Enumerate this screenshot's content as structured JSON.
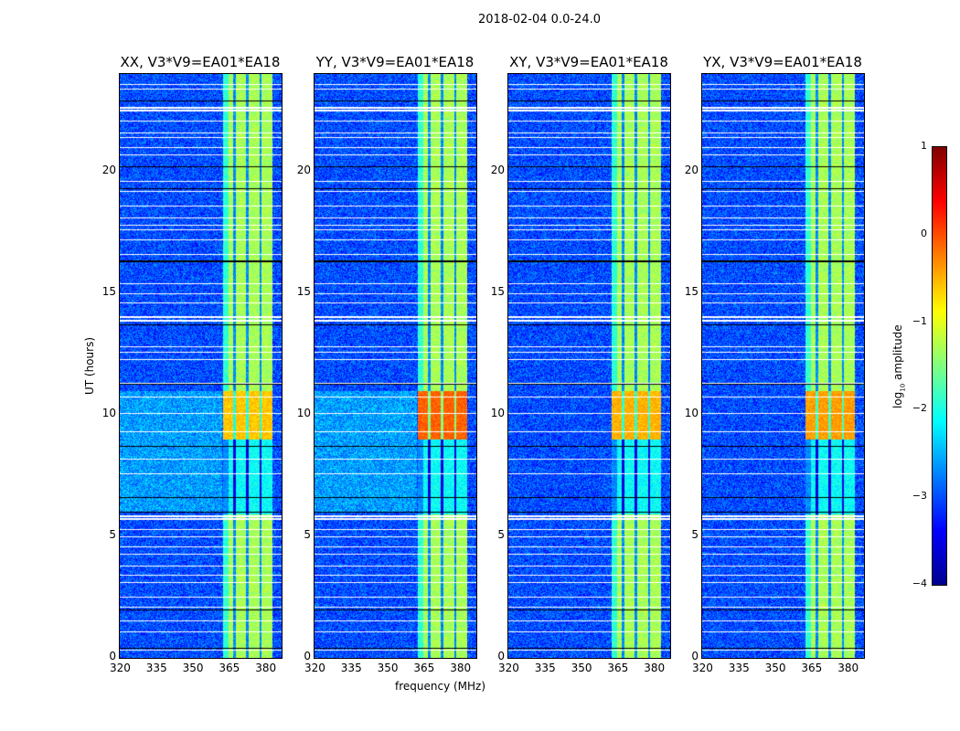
{
  "chart_data": {
    "type": "heatmap",
    "suptitle": "2018-02-04 0.0-24.0",
    "xlabel": "frequency (MHz)",
    "ylabel": "UT (hours)",
    "xlim": [
      320,
      386.7
    ],
    "ylim": [
      0,
      24
    ],
    "xticks": [
      "320",
      "335",
      "350",
      "365",
      "380"
    ],
    "xtick_values": [
      320,
      335,
      350,
      365,
      380
    ],
    "yticks": [
      "0",
      "5",
      "10",
      "15",
      "20"
    ],
    "ytick_values": [
      0,
      5,
      10,
      15,
      20
    ],
    "panels": [
      {
        "title": "XX, V3*V9=EA01*EA18",
        "peak": -0.6
      },
      {
        "title": "YY, V3*V9=EA01*EA18",
        "peak": -0.1
      },
      {
        "title": "XY, V3*V9=EA01*EA18",
        "peak": -0.5
      },
      {
        "title": "YX, V3*V9=EA01*EA18",
        "peak": -0.4
      }
    ],
    "rfi_band_mhz": [
      362.3,
      382.6
    ],
    "rfi_gaps_mhz": [
      367.2,
      372.5,
      377.8
    ],
    "background_level": -3.0,
    "band_level": -1.3,
    "flagged_hours": [
      0.35,
      1.1,
      1.55,
      2.1,
      2.5,
      3.1,
      3.4,
      3.8,
      4.3,
      4.6,
      5.0,
      5.3,
      5.75,
      5.85,
      7.6,
      8.2,
      9.3,
      10.05,
      10.75,
      11.3,
      12.3,
      12.6,
      12.8,
      13.9,
      14.05,
      14.6,
      15.0,
      15.4,
      16.6,
      17.2,
      17.6,
      17.8,
      18.1,
      18.6,
      19.2,
      19.6,
      20.7,
      21.0,
      21.4,
      21.6,
      22.1,
      22.55,
      22.65,
      23.4,
      23.6
    ],
    "dark_hours": [
      0.4,
      2.0,
      6.0,
      6.6,
      8.7,
      11.25,
      13.7,
      16.3,
      16.35,
      19.3,
      20.2,
      22.9
    ],
    "colorbar": {
      "label": "log10 amplitude",
      "label_main": "log",
      "label_sub": "10",
      "label_rest": " amplitude",
      "ticks": [
        "1",
        "0",
        "−1",
        "−2",
        "−3",
        "−4"
      ],
      "tick_values": [
        1,
        0,
        -1,
        -2,
        -3,
        -4
      ],
      "range": [
        -4,
        1
      ],
      "colormap": "jet"
    }
  }
}
